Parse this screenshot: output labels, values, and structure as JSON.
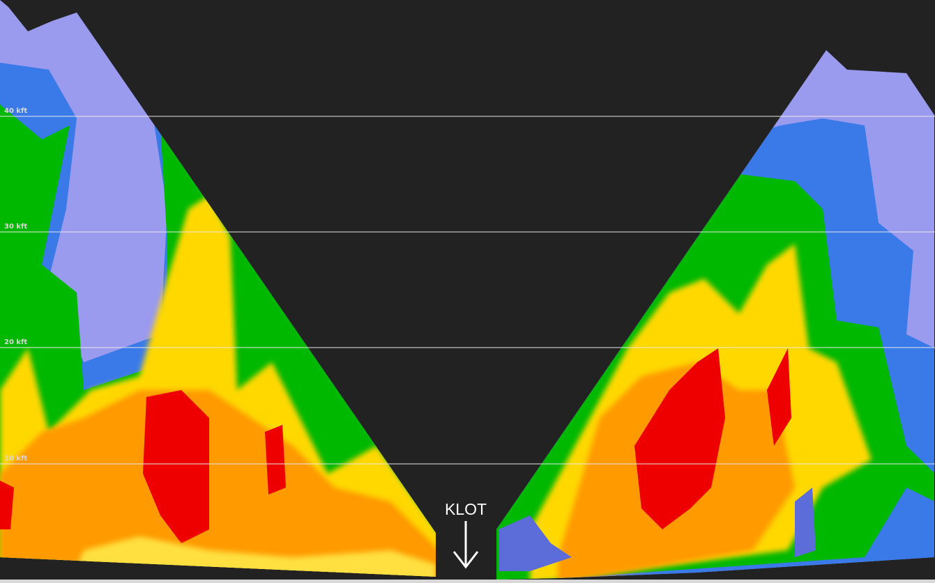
{
  "altitude_labels": [
    "40 kft",
    "30 kft",
    "20 kft",
    "10 kft"
  ],
  "station_label": "KLOT"
}
